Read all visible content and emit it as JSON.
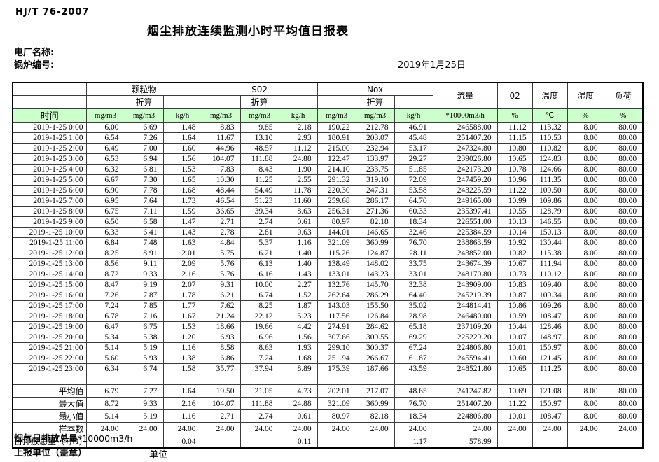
{
  "page": {
    "standard_code": "HJ/T  76-2007",
    "title": "烟尘排放连续监测小时平均值日报表",
    "plant_name_label": "电厂名称:",
    "boiler_no_label": "锅炉编号:",
    "date": "2019年1月25日"
  },
  "colors": {
    "header_fill": "#ccffcc",
    "header_divider": "#2f8f2f",
    "grid": "#3c3c3c"
  },
  "table": {
    "header": {
      "time_label": "时间",
      "groups": [
        {
          "label": "颗粒物",
          "sub": "折算"
        },
        {
          "label": "S02",
          "sub": "折算"
        },
        {
          "label": "Nox",
          "sub": "折算"
        }
      ],
      "flow_label": "流量",
      "o2_label": "02",
      "temp_label": "温度",
      "humidity_label": "湿度",
      "load_label": "负荷",
      "units": [
        "mg/m3",
        "mg/m3",
        "kg/h",
        "mg/m3",
        "mg/m3",
        "kg/h",
        "mg/m3",
        "mg/m3",
        "kg/h",
        "*10000m3/h",
        "%",
        "℃",
        "%",
        "%"
      ]
    },
    "rows": [
      {
        "time": "2019-1-25 0:00",
        "values": [
          "6.00",
          "6.69",
          "1.48",
          "8.83",
          "9.85",
          "2.18",
          "190.22",
          "212.78",
          "46.91",
          "246588.00",
          "11.12",
          "113.32",
          "8.00",
          "80.00"
        ]
      },
      {
        "time": "2019-1-25 1:00",
        "values": [
          "6.54",
          "7.26",
          "1.64",
          "11.67",
          "13.10",
          "2.93",
          "180.91",
          "203.07",
          "45.48",
          "251407.20",
          "11.15",
          "110.53",
          "8.00",
          "80.00"
        ]
      },
      {
        "time": "2019-1-25 2:00",
        "values": [
          "6.49",
          "7.00",
          "1.60",
          "44.96",
          "48.57",
          "11.12",
          "215.00",
          "232.94",
          "53.17",
          "247324.80",
          "10.80",
          "110.82",
          "8.00",
          "80.00"
        ]
      },
      {
        "time": "2019-1-25 3:00",
        "values": [
          "6.53",
          "6.94",
          "1.56",
          "104.07",
          "111.88",
          "24.88",
          "122.47",
          "133.97",
          "29.27",
          "239026.80",
          "10.65",
          "124.83",
          "8.00",
          "80.00"
        ]
      },
      {
        "time": "2019-1-25 4:00",
        "values": [
          "6.32",
          "6.81",
          "1.53",
          "7.83",
          "8.43",
          "1.90",
          "214.10",
          "233.75",
          "51.85",
          "242173.20",
          "10.78",
          "124.66",
          "8.00",
          "80.00"
        ]
      },
      {
        "time": "2019-1-25 5:00",
        "values": [
          "6.67",
          "7.30",
          "1.65",
          "10.30",
          "11.25",
          "2.55",
          "291.32",
          "319.10",
          "72.09",
          "247459.20",
          "10.96",
          "111.35",
          "8.00",
          "80.00"
        ]
      },
      {
        "time": "2019-1-25 6:00",
        "values": [
          "6.90",
          "7.78",
          "1.68",
          "48.44",
          "54.49",
          "11.78",
          "220.30",
          "247.31",
          "53.58",
          "243225.59",
          "11.22",
          "109.50",
          "8.00",
          "80.00"
        ]
      },
      {
        "time": "2019-1-25 7:00",
        "values": [
          "6.95",
          "7.64",
          "1.73",
          "46.54",
          "51.23",
          "11.60",
          "259.68",
          "286.17",
          "64.70",
          "249165.00",
          "10.99",
          "109.86",
          "8.00",
          "80.00"
        ]
      },
      {
        "time": "2019-1-25 8:00",
        "values": [
          "6.75",
          "7.11",
          "1.59",
          "36.65",
          "39.34",
          "8.63",
          "256.31",
          "271.36",
          "60.33",
          "235397.41",
          "10.55",
          "128.79",
          "8.00",
          "80.00"
        ]
      },
      {
        "time": "2019-1-25 9:00",
        "values": [
          "6.50",
          "6.58",
          "1.47",
          "2.71",
          "2.74",
          "0.61",
          "80.97",
          "82.18",
          "18.34",
          "226551.00",
          "10.13",
          "146.55",
          "8.00",
          "80.00"
        ]
      },
      {
        "time": "2019-1-25 10:00",
        "values": [
          "6.33",
          "6.41",
          "1.43",
          "2.78",
          "2.81",
          "0.63",
          "144.01",
          "146.65",
          "32.46",
          "225384.59",
          "10.14",
          "150.13",
          "8.00",
          "80.00"
        ]
      },
      {
        "time": "2019-1-25 11:00",
        "values": [
          "6.84",
          "7.48",
          "1.63",
          "4.84",
          "5.37",
          "1.16",
          "321.09",
          "360.99",
          "76.70",
          "238863.59",
          "10.92",
          "130.44",
          "8.00",
          "80.00"
        ]
      },
      {
        "time": "2019-1-25 12:00",
        "values": [
          "8.25",
          "8.91",
          "2.01",
          "5.75",
          "6.21",
          "1.40",
          "115.26",
          "124.87",
          "28.11",
          "243852.00",
          "10.82",
          "115.38",
          "8.00",
          "80.00"
        ]
      },
      {
        "time": "2019-1-25 13:00",
        "values": [
          "8.56",
          "9.11",
          "2.09",
          "5.76",
          "6.13",
          "1.40",
          "138.49",
          "148.02",
          "33.75",
          "243674.39",
          "10.67",
          "111.94",
          "8.00",
          "80.00"
        ]
      },
      {
        "time": "2019-1-25 14:00",
        "values": [
          "8.72",
          "9.33",
          "2.16",
          "5.76",
          "6.16",
          "1.43",
          "133.01",
          "143.23",
          "33.01",
          "248170.80",
          "10.73",
          "110.12",
          "8.00",
          "80.00"
        ]
      },
      {
        "time": "2019-1-25 15:00",
        "values": [
          "8.47",
          "9.19",
          "2.07",
          "9.31",
          "10.00",
          "2.27",
          "132.76",
          "145.70",
          "32.38",
          "243909.00",
          "10.83",
          "109.40",
          "8.00",
          "80.00"
        ]
      },
      {
        "time": "2019-1-25 16:00",
        "values": [
          "7.26",
          "7.87",
          "1.78",
          "6.21",
          "6.74",
          "1.52",
          "262.64",
          "286.29",
          "64.40",
          "245219.39",
          "10.87",
          "109.34",
          "8.00",
          "80.00"
        ]
      },
      {
        "time": "2019-1-25 17:00",
        "values": [
          "7.24",
          "7.85",
          "1.77",
          "7.62",
          "8.25",
          "1.87",
          "143.03",
          "155.50",
          "35.02",
          "244814.41",
          "10.86",
          "109.26",
          "8.00",
          "80.00"
        ]
      },
      {
        "time": "2019-1-25 18:00",
        "values": [
          "6.78",
          "7.16",
          "1.67",
          "21.24",
          "22.12",
          "5.23",
          "117.56",
          "126.84",
          "28.98",
          "246480.00",
          "10.59",
          "108.47",
          "8.00",
          "80.00"
        ]
      },
      {
        "time": "2019-1-25 19:00",
        "values": [
          "6.47",
          "6.75",
          "1.53",
          "18.66",
          "19.66",
          "4.42",
          "274.91",
          "284.62",
          "65.18",
          "237109.20",
          "10.44",
          "128.46",
          "8.00",
          "80.00"
        ]
      },
      {
        "time": "2019-1-25 20:00",
        "values": [
          "5.34",
          "5.38",
          "1.20",
          "6.93",
          "6.96",
          "1.56",
          "307.66",
          "309.55",
          "69.29",
          "225229.20",
          "10.07",
          "148.97",
          "8.00",
          "80.00"
        ]
      },
      {
        "time": "2019-1-25 21:00",
        "values": [
          "5.14",
          "5.19",
          "1.16",
          "8.58",
          "8.63",
          "1.93",
          "299.10",
          "300.37",
          "67.24",
          "224806.80",
          "10.01",
          "150.97",
          "8.00",
          "80.00"
        ]
      },
      {
        "time": "2019-1-25 22:00",
        "values": [
          "5.60",
          "5.93",
          "1.38",
          "6.86",
          "7.24",
          "1.68",
          "251.94",
          "266.67",
          "61.87",
          "245594.41",
          "10.60",
          "121.45",
          "8.00",
          "80.00"
        ]
      },
      {
        "time": "2019-1-25 23:00",
        "values": [
          "6.34",
          "6.74",
          "1.58",
          "35.77",
          "37.94",
          "8.89",
          "175.39",
          "187.66",
          "43.59",
          "248521.80",
          "10.65",
          "111.25",
          "8.00",
          "80.00"
        ]
      }
    ],
    "summary": [
      {
        "label": "平均值",
        "values": [
          "6.79",
          "7.27",
          "1.64",
          "19.50",
          "21.05",
          "4.73",
          "202.01",
          "217.07",
          "48.65",
          "241247.82",
          "10.69",
          "121.08",
          "8.00",
          "80.00"
        ]
      },
      {
        "label": "最大值",
        "values": [
          "8.72",
          "9.33",
          "2.16",
          "104.07",
          "111.88",
          "24.88",
          "321.09",
          "360.99",
          "76.70",
          "251407.20",
          "11.22",
          "150.97",
          "8.00",
          "80.00"
        ]
      },
      {
        "label": "最小值",
        "values": [
          "5.14",
          "5.19",
          "1.16",
          "2.71",
          "2.74",
          "0.61",
          "80.97",
          "82.18",
          "18.34",
          "224806.80",
          "10.01",
          "108.47",
          "8.00",
          "80.00"
        ]
      },
      {
        "label": "样本数",
        "values": [
          "24.00",
          "24.00",
          "24.00",
          "24.00",
          "24.00",
          "24.00",
          "24.00",
          "24.00",
          "24.00",
          "24.00",
          "24.00",
          "24.00",
          "24.00",
          "24.00"
        ]
      },
      {
        "label": "日排放总量（T/D）",
        "values": [
          "",
          "",
          "0.04",
          "",
          "",
          "0.11",
          "",
          "",
          "1.17",
          "578.99",
          "",
          "",
          "",
          ""
        ]
      }
    ]
  },
  "footer": {
    "flue_total_label": "烟气日排放总量",
    "flue_total_unit": "*10000m3/h",
    "report_unit_label": "上报单位（盖章）",
    "unit_label": "单位"
  }
}
